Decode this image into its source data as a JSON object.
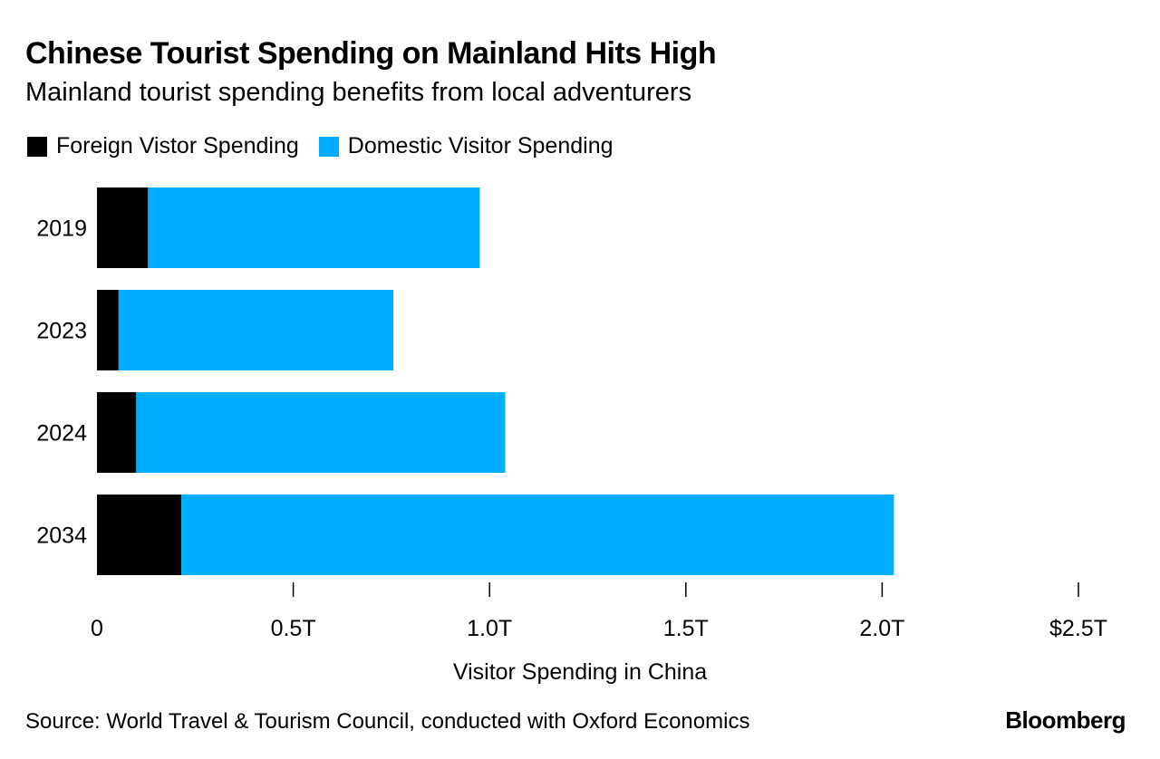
{
  "chart_data": {
    "type": "bar",
    "orientation": "horizontal",
    "stacked": true,
    "title": "Chinese Tourist Spending on Mainland Hits High",
    "subtitle": "Mainland tourist spending benefits from local adventurers",
    "categories": [
      "2019",
      "2023",
      "2024",
      "2034"
    ],
    "series": [
      {
        "name": "Foreign Vistor Spending",
        "color": "#000000",
        "values": [
          0.13,
          0.055,
          0.1,
          0.215
        ]
      },
      {
        "name": "Domestic Visitor Spending",
        "color": "#00aeff",
        "values": [
          0.845,
          0.7,
          0.94,
          1.815
        ]
      }
    ],
    "xlabel": "Visitor Spending in China",
    "ylabel": "",
    "xlim": [
      0,
      2.5
    ],
    "xticks": [
      0,
      0.5,
      1.0,
      1.5,
      2.0,
      2.5
    ],
    "xtick_labels": [
      "0",
      "0.5T",
      "1.0T",
      "1.5T",
      "2.0T",
      "$2.5T"
    ],
    "grid": false,
    "legend_position": "top-left"
  },
  "source": "Source: World Travel & Tourism Council, conducted with Oxford Economics",
  "brand": "Bloomberg"
}
